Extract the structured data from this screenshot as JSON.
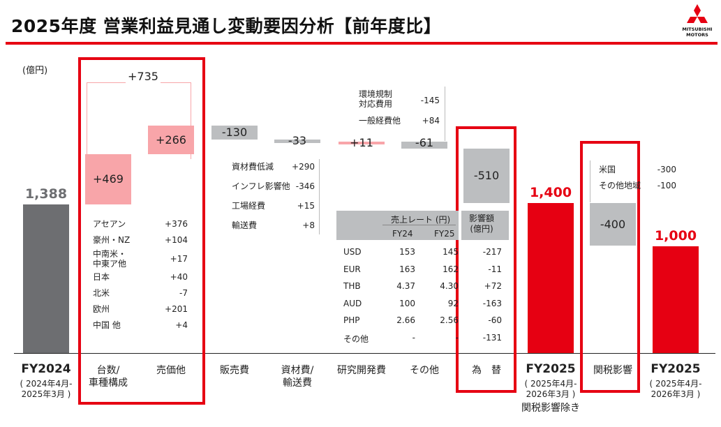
{
  "title": "2025年度 営業利益見通し変動要因分析【前年度比】",
  "logo": {
    "line1": "MITSUBISHI",
    "line2": "MOTORS"
  },
  "unit": "(億円)",
  "colors": {
    "accent": "#e60012",
    "gray_bar": "#6d6e71",
    "pink": "#f8a5a9",
    "light_gray": "#bcbec0"
  },
  "chart_data": {
    "type": "bar",
    "title": "",
    "ylabel": "(億円)",
    "categories": [
      {
        "label": "FY2024",
        "sub": "( 2024年4月-\n2025年3月 )"
      },
      {
        "label": "台数/\n車種構成"
      },
      {
        "label": "売価他"
      },
      {
        "label": "販売費"
      },
      {
        "label": "資材費/\n輸送費"
      },
      {
        "label": "研究開発費"
      },
      {
        "label": "その他"
      },
      {
        "label": "為　替"
      },
      {
        "label": "FY2025",
        "sub": "( 2025年4月-\n2026年3月 )",
        "note": "関税影響除き"
      },
      {
        "label": "関税影響"
      },
      {
        "label": "FY2025",
        "sub": "( 2025年4月-\n2026年3月 )"
      }
    ],
    "bars": [
      {
        "label": "1,388",
        "value": 1388,
        "kind": "total"
      },
      {
        "label": "+469",
        "value": 469,
        "kind": "up"
      },
      {
        "label": "+266",
        "value": 266,
        "kind": "up"
      },
      {
        "label": "-130",
        "value": -130,
        "kind": "down"
      },
      {
        "label": "-33",
        "value": -33,
        "kind": "down"
      },
      {
        "label": "+11",
        "value": 11,
        "kind": "up"
      },
      {
        "label": "-61",
        "value": -61,
        "kind": "down"
      },
      {
        "label": "-510",
        "value": -510,
        "kind": "down"
      },
      {
        "label": "1,400",
        "value": 1400,
        "kind": "total_red"
      },
      {
        "label": "-400",
        "value": -400,
        "kind": "down"
      },
      {
        "label": "1,000",
        "value": 1000,
        "kind": "total_red"
      }
    ],
    "bracket_label": "+735",
    "volume_breakdown": [
      {
        "label": "アセアン",
        "value": "+376"
      },
      {
        "label": "豪州・NZ",
        "value": "+104"
      },
      {
        "label": "中南米・\n中東ア他",
        "value": "+17"
      },
      {
        "label": "日本",
        "value": "+40"
      },
      {
        "label": "北米",
        "value": "-7"
      },
      {
        "label": "欧州",
        "value": "+201"
      },
      {
        "label": "中国 他",
        "value": "+4"
      }
    ],
    "material_breakdown": [
      {
        "label": "資材費低減",
        "value": "+290"
      },
      {
        "label": "インフレ影響他",
        "value": "-346"
      },
      {
        "label": "工場経費",
        "value": "+15"
      },
      {
        "label": "輸送費",
        "value": "+8"
      }
    ],
    "other_breakdown": [
      {
        "label": "環境規制\n対応費用",
        "value": "-145"
      },
      {
        "label": "一般経費他",
        "value": "+84"
      }
    ],
    "fx_table": {
      "header_rate": "売上レート (円)",
      "header_fy24": "FY24",
      "header_fy25": "FY25",
      "header_impact": "影響額\n(億円)",
      "rows": [
        {
          "cur": "USD",
          "fy24": "153",
          "fy25": "145",
          "impact": "-217"
        },
        {
          "cur": "EUR",
          "fy24": "163",
          "fy25": "162",
          "impact": "-11"
        },
        {
          "cur": "THB",
          "fy24": "4.37",
          "fy25": "4.30",
          "impact": "+72"
        },
        {
          "cur": "AUD",
          "fy24": "100",
          "fy25": "92",
          "impact": "-163"
        },
        {
          "cur": "PHP",
          "fy24": "2.66",
          "fy25": "2.56",
          "impact": "-60"
        },
        {
          "cur": "その他",
          "fy24": "-",
          "fy25": "-",
          "impact": "-131"
        }
      ]
    },
    "tariff_breakdown": [
      {
        "label": "米国",
        "value": "-300"
      },
      {
        "label": "その他地域",
        "value": "-100"
      }
    ]
  }
}
